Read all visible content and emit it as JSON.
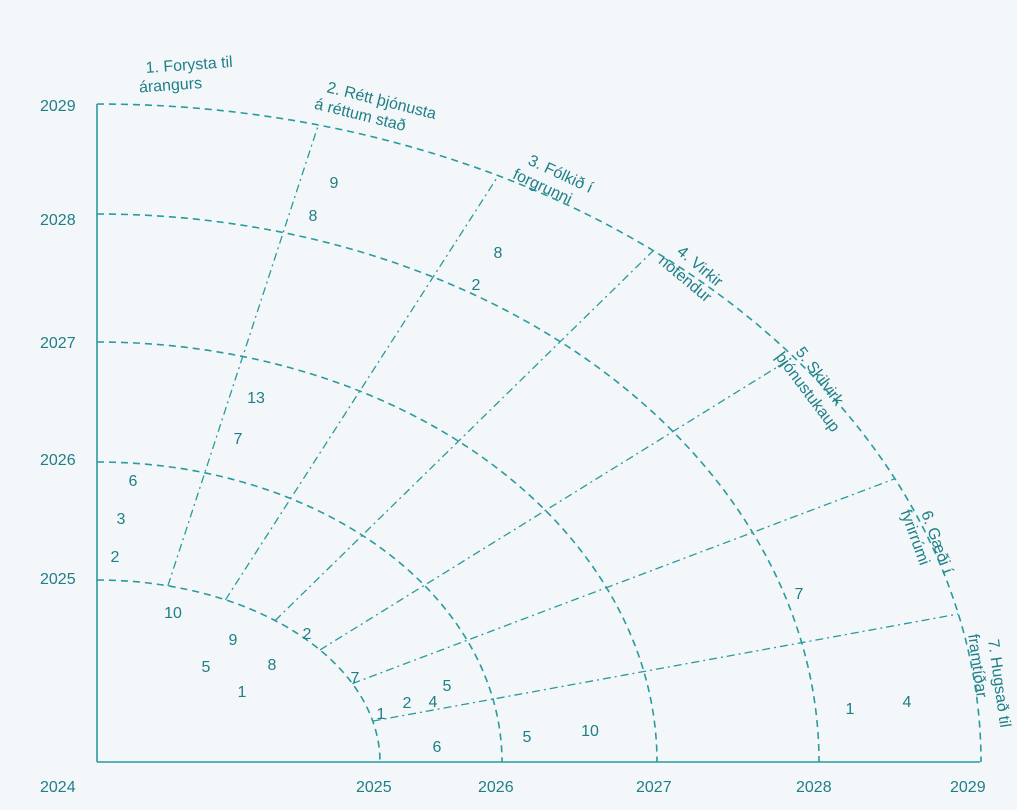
{
  "colors": {
    "background": "#f3f7f9",
    "accent": "#1f7f86",
    "line": "#2a9a9c"
  },
  "years": [
    "2024",
    "2025",
    "2026",
    "2027",
    "2028",
    "2029"
  ],
  "segments": [
    {
      "lines": [
        "1. Forysta til",
        "árangurs"
      ]
    },
    {
      "lines": [
        "2. Rétt þjónusta",
        "á réttum stað"
      ]
    },
    {
      "lines": [
        "3. Fólkið í",
        "forgrunni"
      ]
    },
    {
      "lines": [
        "4. Virkir",
        "notendur"
      ]
    },
    {
      "lines": [
        "5. Skilvirk",
        "þjónustukaup"
      ]
    },
    {
      "lines": [
        "6. Gæði í",
        "fyrirrúmi"
      ]
    },
    {
      "lines": [
        "7. Hugsað til",
        "framtíðar"
      ]
    }
  ],
  "counts": {
    "a": "10",
    "b": "9",
    "c": "5",
    "d": "8",
    "e": "1",
    "f": "2",
    "g": "7",
    "h": "1",
    "i": "2",
    "j": "4",
    "k": "5",
    "l": "6",
    "m": "5",
    "n": "10",
    "o": "6",
    "p": "3",
    "q": "2",
    "r": "13",
    "s": "7",
    "t": "9",
    "u": "8",
    "v": "8",
    "w": "2",
    "x": "7",
    "y": "1",
    "z": "4"
  }
}
